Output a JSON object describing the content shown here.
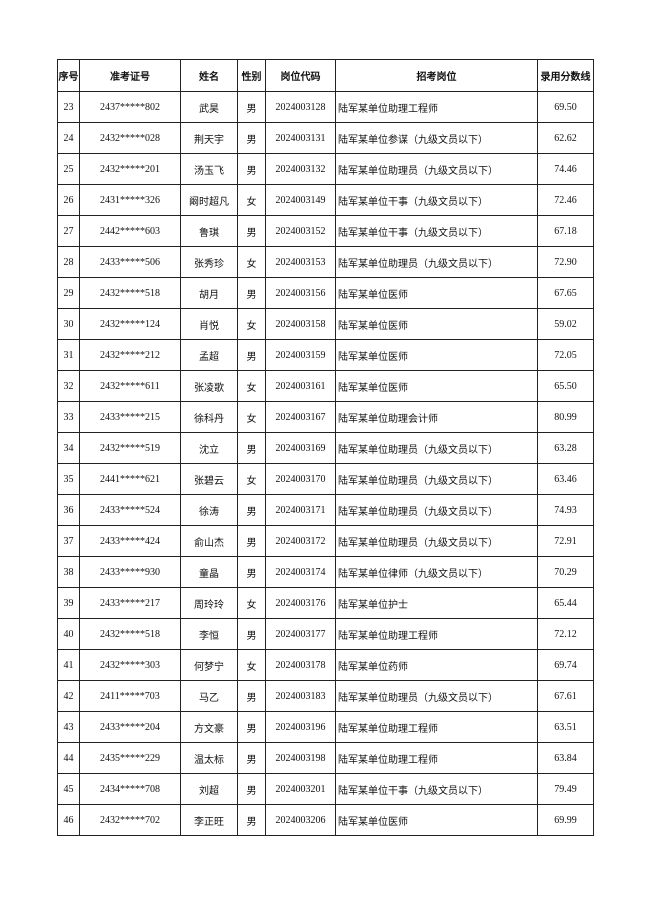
{
  "table": {
    "headers": [
      "序号",
      "准考证号",
      "姓名",
      "性别",
      "岗位代码",
      "招考岗位",
      "录用分数线"
    ],
    "rows": [
      [
        "23",
        "2437*****802",
        "武昊",
        "男",
        "2024003128",
        "陆军某单位助理工程师",
        "69.50"
      ],
      [
        "24",
        "2432*****028",
        "荆天宇",
        "男",
        "2024003131",
        "陆军某单位参谋（九级文员以下）",
        "62.62"
      ],
      [
        "25",
        "2432*****201",
        "汤玉飞",
        "男",
        "2024003132",
        "陆军某单位助理员（九级文员以下）",
        "74.46"
      ],
      [
        "26",
        "2431*****326",
        "阚时超凡",
        "女",
        "2024003149",
        "陆军某单位干事（九级文员以下）",
        "72.46"
      ],
      [
        "27",
        "2442*****603",
        "鲁琪",
        "男",
        "2024003152",
        "陆军某单位干事（九级文员以下）",
        "67.18"
      ],
      [
        "28",
        "2433*****506",
        "张秀珍",
        "女",
        "2024003153",
        "陆军某单位助理员（九级文员以下）",
        "72.90"
      ],
      [
        "29",
        "2432*****518",
        "胡月",
        "男",
        "2024003156",
        "陆军某单位医师",
        "67.65"
      ],
      [
        "30",
        "2432*****124",
        "肖悦",
        "女",
        "2024003158",
        "陆军某单位医师",
        "59.02"
      ],
      [
        "31",
        "2432*****212",
        "孟超",
        "男",
        "2024003159",
        "陆军某单位医师",
        "72.05"
      ],
      [
        "32",
        "2432*****611",
        "张凌歌",
        "女",
        "2024003161",
        "陆军某单位医师",
        "65.50"
      ],
      [
        "33",
        "2433*****215",
        "徐科丹",
        "女",
        "2024003167",
        "陆军某单位助理会计师",
        "80.99"
      ],
      [
        "34",
        "2432*****519",
        "沈立",
        "男",
        "2024003169",
        "陆军某单位助理员（九级文员以下）",
        "63.28"
      ],
      [
        "35",
        "2441*****621",
        "张碧云",
        "女",
        "2024003170",
        "陆军某单位助理员（九级文员以下）",
        "63.46"
      ],
      [
        "36",
        "2433*****524",
        "徐涛",
        "男",
        "2024003171",
        "陆军某单位助理员（九级文员以下）",
        "74.93"
      ],
      [
        "37",
        "2433*****424",
        "俞山杰",
        "男",
        "2024003172",
        "陆军某单位助理员（九级文员以下）",
        "72.91"
      ],
      [
        "38",
        "2433*****930",
        "童晶",
        "男",
        "2024003174",
        "陆军某单位律师（九级文员以下）",
        "70.29"
      ],
      [
        "39",
        "2433*****217",
        "周玲玲",
        "女",
        "2024003176",
        "陆军某单位护士",
        "65.44"
      ],
      [
        "40",
        "2432*****518",
        "李恒",
        "男",
        "2024003177",
        "陆军某单位助理工程师",
        "72.12"
      ],
      [
        "41",
        "2432*****303",
        "何梦宁",
        "女",
        "2024003178",
        "陆军某单位药师",
        "69.74"
      ],
      [
        "42",
        "2411*****703",
        "马乙",
        "男",
        "2024003183",
        "陆军某单位助理员（九级文员以下）",
        "67.61"
      ],
      [
        "43",
        "2433*****204",
        "方文豪",
        "男",
        "2024003196",
        "陆军某单位助理工程师",
        "63.51"
      ],
      [
        "44",
        "2435*****229",
        "温太标",
        "男",
        "2024003198",
        "陆军某单位助理工程师",
        "63.84"
      ],
      [
        "45",
        "2434*****708",
        "刘超",
        "男",
        "2024003201",
        "陆军某单位干事（九级文员以下）",
        "79.49"
      ],
      [
        "46",
        "2432*****702",
        "李正旺",
        "男",
        "2024003206",
        "陆军某单位医师",
        "69.99"
      ]
    ]
  }
}
